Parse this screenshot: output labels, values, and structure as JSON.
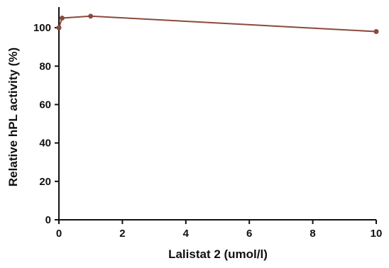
{
  "chart_data": {
    "type": "line",
    "title": "",
    "xlabel": "Lalistat 2 (umol/l)",
    "ylabel": "Relative hPL activity (%)",
    "xlim": [
      0,
      10
    ],
    "ylim": [
      0,
      110
    ],
    "x_ticks": [
      0,
      2,
      4,
      6,
      8,
      10
    ],
    "y_ticks": [
      0,
      20,
      40,
      60,
      80,
      100
    ],
    "x_tick_labels": [
      "0",
      "2",
      "4",
      "6",
      "8",
      "10"
    ],
    "y_tick_labels": [
      "0",
      "20",
      "40",
      "60",
      "80",
      "100"
    ],
    "grid": false,
    "series": [
      {
        "color": "#8b4a3c",
        "x": [
          0,
          0.1,
          1,
          10
        ],
        "y": [
          100,
          105,
          106,
          98
        ]
      }
    ]
  }
}
